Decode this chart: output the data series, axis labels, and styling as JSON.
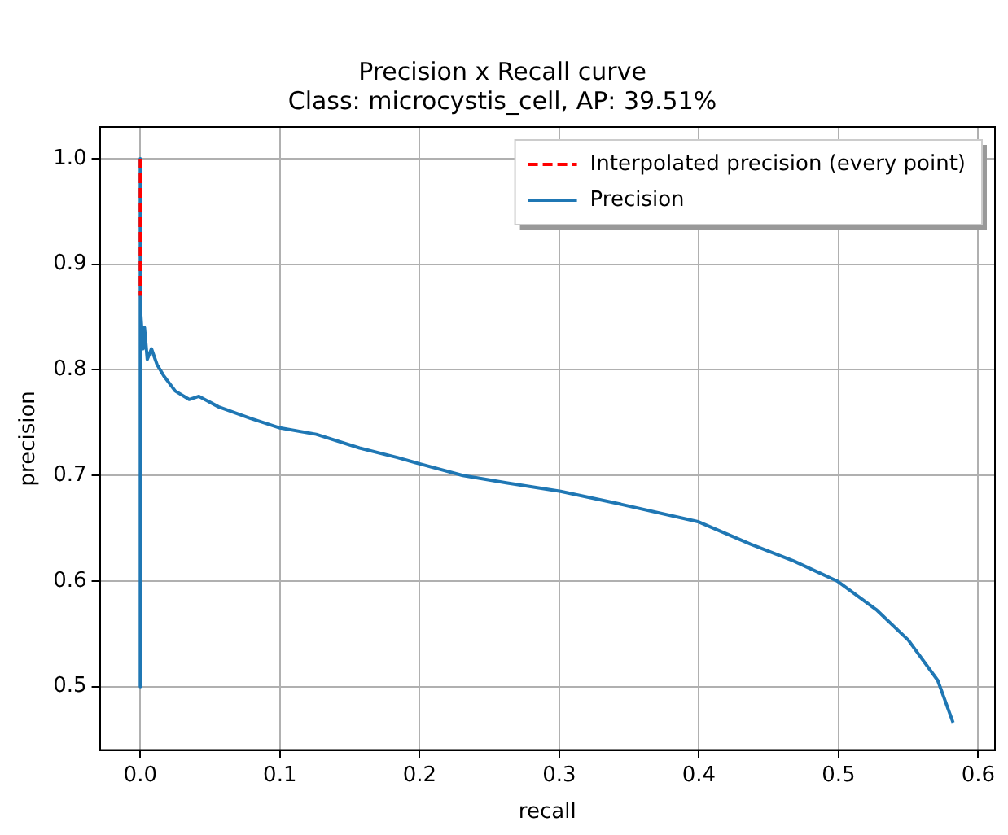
{
  "chart_data": {
    "type": "line",
    "title": "Precision x Recall curve",
    "subtitle": "Class: microcystis_cell, AP: 39.51%",
    "xlabel": "recall",
    "ylabel": "precision",
    "xlim": [
      -0.029,
      0.612
    ],
    "ylim": [
      0.44,
      1.03
    ],
    "xticks": [
      {
        "value": 0,
        "label": "0.0"
      },
      0.1,
      0.2,
      0.3,
      0.4,
      0.5,
      0.6
    ],
    "yticks": [
      0.5,
      0.6,
      0.7,
      0.8,
      0.9,
      {
        "value": 1,
        "label": "1.0"
      }
    ],
    "grid": true,
    "legend": "top right",
    "series": [
      {
        "name": "Interpolated precision (every point)",
        "color": "#ff0000",
        "line_style": "dashed",
        "x": [
          0,
          0
        ],
        "values": [
          1.0,
          0.87
        ]
      },
      {
        "name": "Precision",
        "color": "#1f77b4",
        "line_style": "solid",
        "x": [
          0,
          0,
          0,
          0.002,
          0.003,
          0.005,
          0.008,
          0.012,
          0.017,
          0.025,
          0.035,
          0.042,
          0.056,
          0.079,
          0.1,
          0.126,
          0.157,
          0.184,
          0.2,
          0.231,
          0.262,
          0.301,
          0.34,
          0.4,
          0.437,
          0.468,
          0.499,
          0.527,
          0.55,
          0.571,
          0.582
        ],
        "values": [
          1.0,
          0.5,
          0.86,
          0.82,
          0.84,
          0.81,
          0.82,
          0.805,
          0.794,
          0.78,
          0.772,
          0.775,
          0.765,
          0.754,
          0.745,
          0.739,
          0.726,
          0.717,
          0.711,
          0.7,
          0.693,
          0.685,
          0.674,
          0.656,
          0.635,
          0.619,
          0.6,
          0.573,
          0.544,
          0.506,
          0.466
        ]
      }
    ]
  }
}
